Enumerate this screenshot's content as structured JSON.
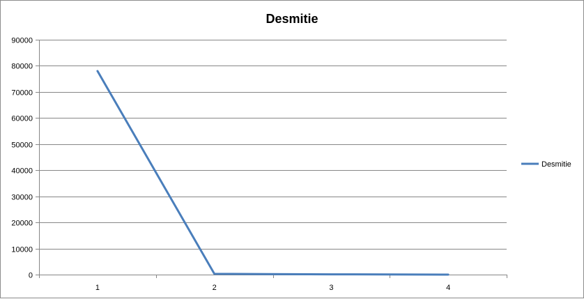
{
  "chart_data": {
    "type": "line",
    "title": "Desmitie",
    "xlabel": "",
    "ylabel": "",
    "categories": [
      "1",
      "2",
      "3",
      "4"
    ],
    "series": [
      {
        "name": "Desmitie",
        "values": [
          78000,
          300,
          100,
          10
        ],
        "color": "#4a7ebb"
      }
    ],
    "ylim": [
      0,
      90000
    ],
    "yticks": [
      0,
      10000,
      20000,
      30000,
      40000,
      50000,
      60000,
      70000,
      80000,
      90000
    ],
    "grid": true,
    "legend_position": "right"
  }
}
